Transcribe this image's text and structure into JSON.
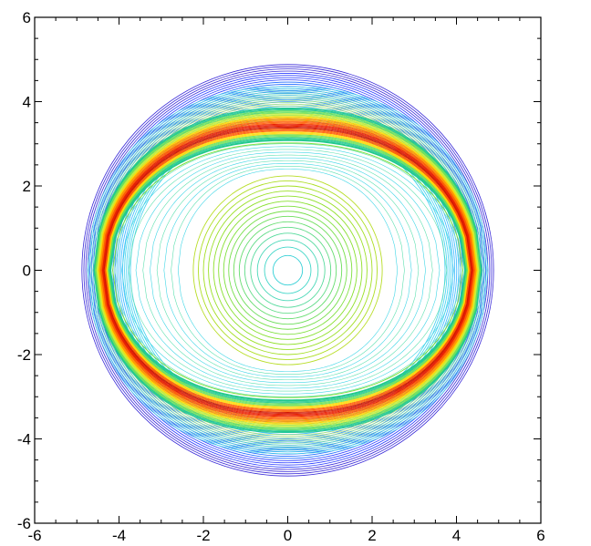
{
  "chart_data": {
    "type": "contour",
    "title": "",
    "xlabel": "",
    "ylabel": "",
    "xlim": [
      -6,
      6
    ],
    "ylim": [
      -6,
      6
    ],
    "grid": false,
    "legend": "none",
    "x_ticks": [
      -6,
      -4,
      -2,
      0,
      2,
      4,
      6
    ],
    "y_ticks": [
      -6,
      -4,
      -2,
      0,
      2,
      4,
      6
    ],
    "x_tick_labels": [
      "-6",
      "-4",
      "-2",
      "0",
      "2",
      "4",
      "6"
    ],
    "y_tick_labels": [
      "-6",
      "-4",
      "-2",
      "0",
      "2",
      "4",
      "6"
    ],
    "domain_radius": 4.9,
    "regions": {
      "inner_circles": {
        "center": [
          0,
          0
        ],
        "radii": [
          0.35,
          0.55,
          0.72,
          0.88,
          1.02,
          1.15,
          1.28,
          1.4,
          1.52,
          1.64,
          1.76,
          1.88,
          2.0,
          2.12,
          2.24
        ],
        "colors": [
          "#35d0d6",
          "#40d6c8",
          "#4ad8b8",
          "#55da9c",
          "#5edb86",
          "#66dd70",
          "#6ede5c",
          "#76df4a",
          "#7ee03c",
          "#88e030",
          "#90e02a",
          "#9ae026",
          "#a4df24",
          "#aede24",
          "#b8dd26"
        ]
      },
      "eye_shock": {
        "x_extent": [
          -4.2,
          4.2
        ],
        "y_extent_top": [
          3.1,
          3.85
        ],
        "colors": [
          "#22c98e",
          "#6be15a",
          "#c8ee3a",
          "#ffd700",
          "#ff9800",
          "#ff5a00",
          "#e81e00",
          "#d01600",
          "#ff5a00",
          "#ffd700",
          "#6be15a",
          "#22c98e"
        ]
      },
      "outer_band": {
        "colors": [
          "#1e6bff",
          "#2f8cff",
          "#35b6ff",
          "#3fd1f0",
          "#2b3dff",
          "#3a2ad8"
        ]
      }
    },
    "colormap": "rainbow"
  }
}
